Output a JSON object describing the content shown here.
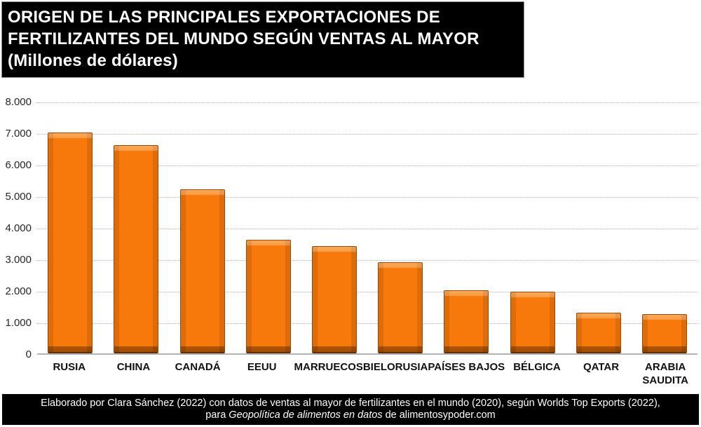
{
  "header": {
    "title_line1": "ORIGEN DE LAS PRINCIPALES EXPORTACIONES DE",
    "title_line2": "FERTILIZANTES DEL MUNDO SEGÚN VENTAS AL MAYOR",
    "title_line3": "(Millones de dólares)"
  },
  "chart_data": {
    "type": "bar",
    "title": "ORIGEN DE LAS PRINCIPALES EXPORTACIONES DE FERTILIZANTES DEL MUNDO SEGÚN VENTAS AL MAYOR (Millones de dólares)",
    "categories": [
      "RUSIA",
      "CHINA",
      "CANADÁ",
      "EEUU",
      "MARRUECOS",
      "BIELORUSIA",
      "PAÍSES BAJOS",
      "BÉLGICA",
      "QATAR",
      "ARABIA\nSAUDITA"
    ],
    "values": [
      7000,
      6600,
      5200,
      3600,
      3400,
      2900,
      2000,
      1950,
      1300,
      1250
    ],
    "xlabel": "",
    "ylabel": "",
    "ylim": [
      0,
      8000
    ],
    "y_ticks": [
      "8.000",
      "7.000",
      "6.000",
      "5.000",
      "4.000",
      "3.000",
      "2.000",
      "1.000",
      "0"
    ],
    "grid": "horizontal-dotted",
    "legend": "none",
    "bar_style": "3d-bevel"
  },
  "colors": {
    "bar_fill": "#F8790B",
    "bar_edge": "#96490A",
    "title_bg": "#000000",
    "title_text": "#FFFFFF",
    "gridline": "#B3B3B3",
    "axis_text": "#262626",
    "footer_bg": "#000000",
    "footer_text": "#FFFFFF",
    "background": "#FFFFFF"
  },
  "footer": {
    "line1": "Elaborado por Clara Sánchez (2022) con datos de ventas al mayor de fertilizantes en el mundo (2020), según Worlds Top Exports (2022),",
    "line2_prefix": "para ",
    "line2_italic": "Geopolítica de alimentos en datos",
    "line2_suffix": " de alimentosypoder.com"
  }
}
